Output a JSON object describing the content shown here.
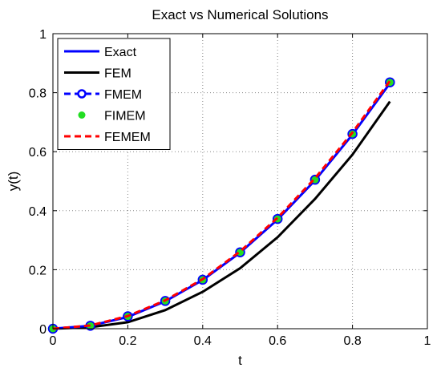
{
  "chart_data": {
    "type": "line",
    "title": "Exact vs Numerical Solutions",
    "xlabel": "t",
    "ylabel": "y(t)",
    "xlim": [
      0,
      1
    ],
    "ylim": [
      0,
      1
    ],
    "xticks": [
      "0",
      "0.2",
      "0.4",
      "0.6",
      "0.8",
      "1"
    ],
    "yticks": [
      "0",
      "0.2",
      "0.4",
      "0.6",
      "0.8",
      "1"
    ],
    "grid": true,
    "legend_position": "top-left",
    "x": [
      0,
      0.1,
      0.2,
      0.3,
      0.4,
      0.5,
      0.6,
      0.7,
      0.8,
      0.9
    ],
    "series": [
      {
        "name": "Exact",
        "style": "solid",
        "color": "#0000ff",
        "values": [
          0,
          0.01,
          0.04,
          0.093,
          0.165,
          0.258,
          0.37,
          0.503,
          0.658,
          0.832
        ]
      },
      {
        "name": "FEM",
        "style": "solid",
        "color": "#000000",
        "values": [
          0,
          0.005,
          0.022,
          0.063,
          0.125,
          0.205,
          0.31,
          0.44,
          0.59,
          0.77
        ]
      },
      {
        "name": "FMEM",
        "style": "dashed-circle-markers",
        "color": "#0000ff",
        "values": [
          0,
          0.01,
          0.042,
          0.094,
          0.166,
          0.259,
          0.372,
          0.505,
          0.66,
          0.835
        ]
      },
      {
        "name": "FIMEM",
        "style": "markers",
        "color": "#22dd22",
        "values": [
          0,
          0.01,
          0.042,
          0.094,
          0.166,
          0.259,
          0.372,
          0.505,
          0.66,
          0.835
        ]
      },
      {
        "name": "FEMEM",
        "style": "dashed",
        "color": "#ff0000",
        "values": [
          0,
          0.011,
          0.043,
          0.096,
          0.168,
          0.262,
          0.376,
          0.51,
          0.665,
          0.84
        ]
      }
    ]
  }
}
